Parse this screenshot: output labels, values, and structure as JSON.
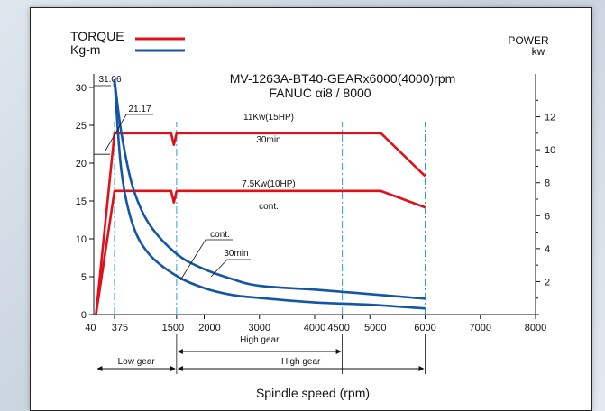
{
  "chart_data": {
    "type": "line",
    "title": "MV-1263A-BT40-GEARx6000(4000)rpm",
    "subtitle": "FANUC αi8 / 8000",
    "xlabel": "Spindle speed (rpm)",
    "ylabel_left": "Kg-m",
    "ylabel_right": "kw",
    "legend": [
      {
        "label": "TORQUE",
        "color": "#e0101a"
      },
      {
        "label": "Kg-m",
        "color": "#1455a4"
      }
    ],
    "right_axis_title": "POWER",
    "x_ticks": [
      "40",
      "375",
      "1500",
      "2000",
      "3000",
      "4000",
      "4500",
      "5000",
      "6000",
      "7000",
      "8000"
    ],
    "x_tick_values": [
      40,
      375,
      1500,
      2000,
      3000,
      4000,
      4500,
      5000,
      6000,
      7000,
      8000
    ],
    "xlim": [
      0,
      8000
    ],
    "y_left_ticks": [
      "0",
      "5",
      "10",
      "15",
      "20",
      "25",
      "30"
    ],
    "ylim_left": [
      0,
      30
    ],
    "y_right_ticks": [
      "2",
      "4",
      "6",
      "8",
      "10",
      "12"
    ],
    "ylim_right": [
      0,
      14
    ],
    "series": [
      {
        "name": "11Kw(15HP) 30min",
        "axis": "right",
        "color": "#e0101a",
        "x": [
          40,
          375,
          1400,
          1450,
          1500,
          5200,
          6000
        ],
        "y": [
          0,
          11,
          11,
          10.3,
          11,
          11,
          8.4
        ]
      },
      {
        "name": "7.5Kw(10HP) cont.",
        "axis": "right",
        "color": "#e0101a",
        "x": [
          40,
          375,
          1400,
          1450,
          1500,
          5200,
          6000
        ],
        "y": [
          0,
          7.5,
          7.5,
          6.8,
          7.5,
          7.5,
          6.5
        ]
      },
      {
        "name": "30min",
        "axis": "left",
        "color": "#1455a4",
        "x": [
          375,
          500,
          700,
          1000,
          1500,
          2000,
          2500,
          3000,
          4000,
          5000,
          6000
        ],
        "y": [
          31.06,
          24,
          17,
          12,
          8,
          6,
          4.7,
          3.8,
          3.3,
          2.7,
          2.1
        ]
      },
      {
        "name": "cont.",
        "axis": "left",
        "color": "#1455a4",
        "x": [
          375,
          500,
          700,
          1000,
          1500,
          2000,
          2500,
          3000,
          4000,
          5000,
          6000
        ],
        "y": [
          31.06,
          19,
          12,
          8,
          5.1,
          3.5,
          2.6,
          2.2,
          1.6,
          1.3,
          0.8
        ]
      }
    ],
    "annotations": {
      "peak_value": "31.06",
      "rated_value": "21.17",
      "label_11kw": "11Kw(15HP)",
      "label_30min_top": "30min",
      "label_75kw": "7.5Kw(10HP)",
      "label_cont_top": "cont.",
      "label_cont_curve": "cont.",
      "label_30min_curve": "30min"
    },
    "gear_ranges": [
      {
        "label": "High gear",
        "from": 1500,
        "to": 4500
      },
      {
        "label": "Low gear",
        "from": 40,
        "to": 1500
      },
      {
        "label": "High gear",
        "from": 1500,
        "to": 6000
      }
    ],
    "vertical_guides": [
      375,
      1500,
      4500,
      6000
    ],
    "grid": false,
    "legend_position": "top-left"
  }
}
